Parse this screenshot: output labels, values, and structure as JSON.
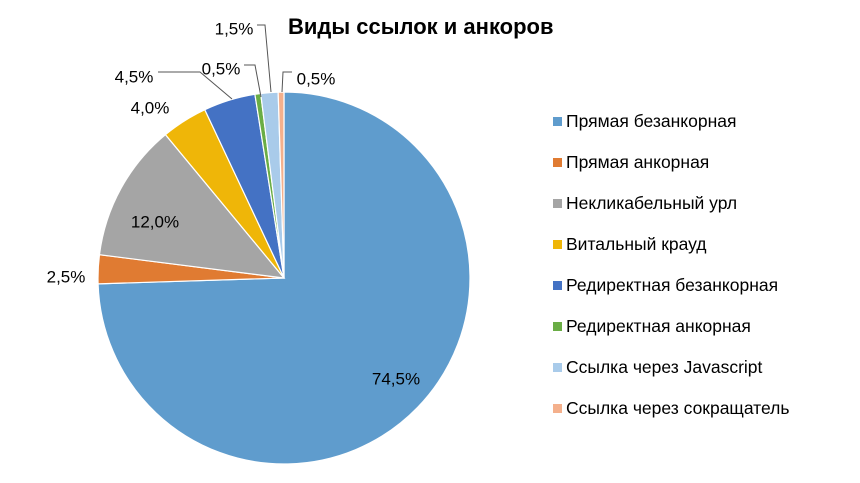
{
  "chart_data": {
    "type": "pie",
    "title": "Виды ссылок и анкоров",
    "legend_position": "right",
    "slices": [
      {
        "name": "Прямая безанкорная",
        "value": 74.5,
        "label": "74,5%",
        "color": "#5f9ccd"
      },
      {
        "name": "Прямая анкорная",
        "value": 2.5,
        "label": "2,5%",
        "color": "#e07b32"
      },
      {
        "name": "Некликабельный урл",
        "value": 12.0,
        "label": "12,0%",
        "color": "#a5a5a5"
      },
      {
        "name": "Витальный крауд",
        "value": 4.0,
        "label": "4,0%",
        "color": "#efb608"
      },
      {
        "name": "Редиректная безанкорная",
        "value": 4.5,
        "label": "4,5%",
        "color": "#4472c4"
      },
      {
        "name": "Редиректная анкорная",
        "value": 0.5,
        "label": "0,5%",
        "color": "#6aad45"
      },
      {
        "name": "Ссылка через Javascript",
        "value": 1.5,
        "label": "1,5%",
        "color": "#a9cbea"
      },
      {
        "name": "Ссылка через сокращатель",
        "value": 0.5,
        "label": "0,5%",
        "color": "#f4b08c"
      }
    ]
  }
}
